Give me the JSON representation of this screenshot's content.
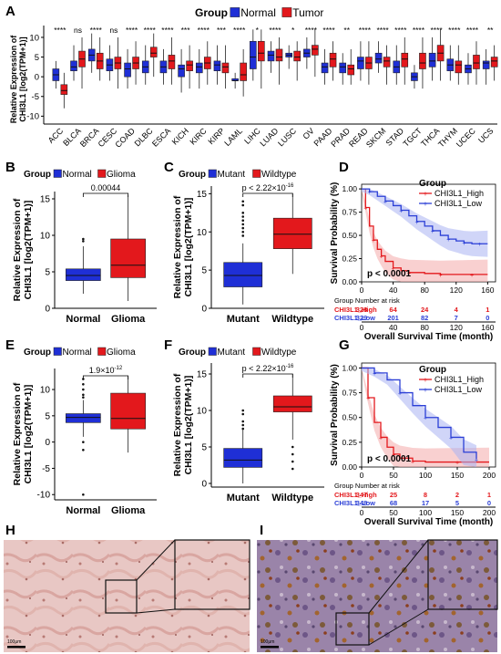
{
  "figure": {
    "panel_letters": [
      "A",
      "B",
      "C",
      "D",
      "E",
      "F",
      "G",
      "H",
      "I"
    ]
  },
  "colors": {
    "normal": "#1f2fd6",
    "tumor": "#e3181c",
    "high": "#e3181c",
    "low": "#2b3fd6",
    "ci_high": "#f4a9a9",
    "ci_low": "#a9b2f2"
  },
  "chart_data": [
    {
      "panel": "A",
      "type": "boxplot",
      "legend_title": "Group",
      "legend": [
        "Normal",
        "Tumor"
      ],
      "legend_position": "top",
      "ylabel": "Relative Expression of CHI3L1 [log2(TPM+1)]",
      "ylim": [
        -12,
        13
      ],
      "yticks": [
        10,
        5,
        0,
        -5,
        -10
      ],
      "categories": [
        "ACC",
        "BLCA",
        "BRCA",
        "CESC",
        "COAD",
        "DLBC",
        "ESCA",
        "KICH",
        "KIRC",
        "KIRP",
        "LAML",
        "LIHC",
        "LUAD",
        "LUSC",
        "OV",
        "PAAD",
        "PRAD",
        "READ",
        "SKCM",
        "STAD",
        "TGCT",
        "THCA",
        "THYM",
        "UCEC",
        "UCS"
      ],
      "significance": [
        "****",
        "ns",
        "****",
        "ns",
        "****",
        "****",
        "****",
        "***",
        "****",
        "***",
        "****",
        "*",
        "****",
        "*",
        "****",
        "****",
        "**",
        "****",
        "****",
        "****",
        "****",
        "****",
        "****",
        "****",
        "**"
      ],
      "series": [
        {
          "name": "Normal",
          "boxes": [
            [
              -3,
              -1,
              0.5,
              2,
              4
            ],
            [
              -1,
              1.5,
              2.5,
              4,
              8
            ],
            [
              1,
              4,
              5.5,
              7,
              11
            ],
            [
              -1,
              1.5,
              3,
              4.5,
              8
            ],
            [
              -3,
              0,
              2,
              3.5,
              7
            ],
            [
              -2,
              1,
              2.5,
              4,
              8
            ],
            [
              -2,
              1,
              2.5,
              4,
              7
            ],
            [
              -4,
              0,
              2,
              3,
              7
            ],
            [
              -3,
              1,
              2.5,
              3.5,
              7
            ],
            [
              -2,
              1.5,
              3,
              4,
              8
            ],
            [
              -3,
              -1,
              -1,
              -0.5,
              1
            ],
            [
              -1,
              2,
              5,
              9,
              12
            ],
            [
              1,
              4,
              5.5,
              6.5,
              9
            ],
            [
              2,
              5,
              5.5,
              6,
              8
            ],
            [
              2,
              5,
              6,
              7,
              10
            ],
            [
              -2,
              1,
              2.5,
              3.5,
              7
            ],
            [
              -2,
              1,
              2.5,
              3.5,
              6
            ],
            [
              -1,
              2,
              4,
              5,
              9
            ],
            [
              1,
              3.5,
              4.5,
              6,
              9
            ],
            [
              -2,
              1,
              2.5,
              4,
              8
            ],
            [
              -3,
              -1,
              0,
              1,
              3
            ],
            [
              -1,
              2.5,
              4,
              6,
              10
            ],
            [
              -1,
              1.5,
              3,
              4.5,
              8
            ],
            [
              -2,
              1,
              2,
              3,
              6
            ],
            [
              -2,
              2,
              3.5,
              4,
              7
            ]
          ]
        },
        {
          "name": "Tumor",
          "boxes": [
            [
              -8,
              -4.5,
              -3.5,
              -2,
              1
            ],
            [
              -3,
              2.5,
              4.5,
              6.5,
              10
            ],
            [
              -1,
              2,
              4,
              6,
              10
            ],
            [
              -3,
              2,
              3.5,
              5,
              10
            ],
            [
              -2,
              2,
              3.5,
              5,
              9
            ],
            [
              0,
              5,
              6,
              7.5,
              11
            ],
            [
              -2,
              2,
              4,
              5.5,
              10
            ],
            [
              -3,
              1.5,
              3,
              4,
              8
            ],
            [
              -2,
              2,
              3.5,
              5,
              9
            ],
            [
              -3,
              1,
              2.5,
              3.5,
              8
            ],
            [
              -5,
              -1,
              0.5,
              3.5,
              7
            ],
            [
              -3,
              4,
              6,
              9,
              12
            ],
            [
              -2,
              4,
              5,
              7,
              10
            ],
            [
              -1,
              4,
              5,
              6.5,
              9
            ],
            [
              0,
              5.5,
              7,
              8,
              12
            ],
            [
              -1,
              2.5,
              4.5,
              6,
              9
            ],
            [
              -2,
              0.5,
              2,
              3,
              7
            ],
            [
              -2,
              2,
              3.5,
              5,
              9
            ],
            [
              -2,
              2.5,
              4,
              5,
              8
            ],
            [
              -2,
              2.5,
              4.5,
              6,
              10
            ],
            [
              -3,
              2,
              3.5,
              6,
              10
            ],
            [
              -1,
              4,
              6,
              8,
              12
            ],
            [
              -2,
              1,
              3,
              4,
              8
            ],
            [
              -2,
              2,
              3.5,
              5.5,
              9
            ],
            [
              -1,
              2.5,
              4,
              5,
              8
            ]
          ]
        }
      ],
      "xlabels_rotated": true
    },
    {
      "panel": "B",
      "type": "boxplot",
      "legend_title": "Group",
      "legend": [
        "Normal",
        "Glioma"
      ],
      "ylabel": "Relative Expression of CHI3L1 [log2(TPM+1)]",
      "ylim": [
        0,
        16
      ],
      "yticks": [
        0,
        5,
        10,
        15
      ],
      "categories": [
        "Normal",
        "Glioma"
      ],
      "pvalue": "0.00044",
      "boxes": [
        [
          2,
          3.8,
          4.5,
          5.4,
          8.5
        ],
        [
          1,
          4.2,
          5.9,
          9.5,
          15.5
        ]
      ],
      "outliers": [
        [
          9.5,
          9.2
        ],
        []
      ]
    },
    {
      "panel": "C",
      "type": "boxplot",
      "legend_title": "Group",
      "legend": [
        "Mutant",
        "Wildtype"
      ],
      "ylabel": "Relative Expression of CHI3L1 [log2(TPM+1)]",
      "ylim": [
        0,
        16
      ],
      "yticks": [
        0,
        5,
        10,
        15
      ],
      "categories": [
        "Mutant",
        "Wildtype"
      ],
      "pvalue": "p < 2.22×10",
      "pvalue_exp": "-16",
      "boxes": [
        [
          0.5,
          2.8,
          4.3,
          6,
          8.5
        ],
        [
          4.5,
          7.8,
          9.7,
          11.8,
          15
        ]
      ],
      "outliers": [
        [
          9.5,
          10,
          10.5,
          11,
          11.5,
          12,
          12.5,
          13.5,
          14
        ],
        []
      ]
    },
    {
      "panel": "D",
      "type": "line",
      "title": "",
      "legend_title": "Group",
      "legend": [
        "CHI3L1_High",
        "CHI3L1_Low"
      ],
      "ylabel": "Survival Probability (%)",
      "xlabel": "Overall Survival Time (month)",
      "xlim": [
        0,
        170
      ],
      "ylim": [
        0,
        1.05
      ],
      "xticks": [
        0,
        40,
        80,
        120,
        160
      ],
      "yticks": [
        "0.00",
        "0.25",
        "0.50",
        "0.75",
        "1.00"
      ],
      "pvalue": "p < 0.0001",
      "series": [
        {
          "name": "CHI3L1_High",
          "x": [
            0,
            5,
            10,
            15,
            20,
            25,
            30,
            40,
            50,
            60,
            80,
            100,
            120,
            140,
            160
          ],
          "y": [
            1,
            0.8,
            0.6,
            0.45,
            0.35,
            0.28,
            0.22,
            0.15,
            0.12,
            0.1,
            0.09,
            0.08,
            0.08,
            0.08,
            0.08
          ]
        },
        {
          "name": "CHI3L1_Low",
          "x": [
            0,
            10,
            20,
            30,
            40,
            50,
            60,
            70,
            80,
            90,
            100,
            110,
            120,
            130,
            140,
            150,
            160
          ],
          "y": [
            1,
            0.97,
            0.92,
            0.87,
            0.82,
            0.77,
            0.71,
            0.65,
            0.6,
            0.55,
            0.5,
            0.46,
            0.44,
            0.42,
            0.41,
            0.41,
            0.41
          ]
        }
      ],
      "risk_table": {
        "title": "Group Number at risk",
        "times": [
          0,
          40,
          80,
          120,
          160
        ],
        "rows": [
          {
            "name": "CHI3L1_High",
            "counts": [
              "328",
              "64",
              "24",
              "4",
              "1"
            ]
          },
          {
            "name": "CHI3L1_Low",
            "counts": [
              "329",
              "201",
              "82",
              "7",
              "0"
            ]
          }
        ]
      }
    },
    {
      "panel": "E",
      "type": "boxplot",
      "legend_title": "Group",
      "legend": [
        "Normal",
        "Glioma"
      ],
      "ylabel": "Relative Expression of CHI3L1 [log2(TPM+1)]",
      "ylim": [
        -11,
        14
      ],
      "yticks": [
        10,
        5,
        0,
        -5,
        -10
      ],
      "categories": [
        "Normal",
        "Glioma"
      ],
      "pvalue": "1.9×10",
      "pvalue_exp": "-12",
      "boxes": [
        [
          1,
          3.7,
          4.7,
          5.4,
          8
        ],
        [
          -2,
          2.5,
          4.5,
          9.3,
          12.5
        ]
      ],
      "outliers": [
        [
          -10,
          -1.5,
          0,
          8.5,
          9,
          10,
          11,
          12
        ],
        []
      ]
    },
    {
      "panel": "F",
      "type": "boxplot",
      "legend_title": "Group",
      "legend": [
        "Mutant",
        "Wildtype"
      ],
      "ylabel": "Relative Expression of CHI3L1 [log2(TPM+1)]",
      "ylim": [
        -0.5,
        16.5
      ],
      "yticks": [
        0,
        5,
        10,
        15
      ],
      "categories": [
        "Mutant",
        "Wildtype"
      ],
      "pvalue": "p < 2.22×10",
      "pvalue_exp": "-16",
      "boxes": [
        [
          0,
          2.2,
          3.2,
          4.8,
          7.5
        ],
        [
          6,
          9.8,
          10.5,
          12,
          15
        ]
      ],
      "outliers": [
        [
          7.5,
          8,
          8.5,
          9.5,
          10
        ],
        [
          2,
          3,
          4,
          5
        ]
      ]
    },
    {
      "panel": "G",
      "type": "line",
      "legend_title": "Group",
      "legend": [
        "CHI3L1_High",
        "CHI3L1_Low"
      ],
      "ylabel": "Survival Probability (%)",
      "xlabel": "Overall Survival Time (month)",
      "xlim": [
        0,
        210
      ],
      "ylim": [
        0,
        1.05
      ],
      "xticks": [
        0,
        50,
        100,
        150,
        200
      ],
      "yticks": [
        "0.00",
        "0.25",
        "0.50",
        "0.75",
        "1.00"
      ],
      "pvalue": "p < 0.0001",
      "series": [
        {
          "name": "CHI3L1_High",
          "x": [
            0,
            10,
            20,
            30,
            40,
            50,
            60,
            80,
            100,
            150,
            200
          ],
          "y": [
            1,
            0.7,
            0.45,
            0.3,
            0.2,
            0.13,
            0.09,
            0.06,
            0.05,
            0.05,
            0.05
          ]
        },
        {
          "name": "CHI3L1_Low",
          "x": [
            0,
            20,
            40,
            60,
            80,
            100,
            120,
            140,
            160,
            180
          ],
          "y": [
            1,
            0.95,
            0.88,
            0.75,
            0.62,
            0.5,
            0.4,
            0.3,
            0.15,
            0.08
          ]
        }
      ],
      "risk_table": {
        "title": "Group Number at risk",
        "times": [
          0,
          50,
          100,
          150,
          200
        ],
        "rows": [
          {
            "name": "CHI3L1_High",
            "counts": [
              "347",
              "25",
              "8",
              "2",
              "1"
            ]
          },
          {
            "name": "CHI3L1_Low",
            "counts": [
              "348",
              "68",
              "17",
              "5",
              "0"
            ]
          }
        ]
      }
    }
  ],
  "micrographs": {
    "H": {
      "scale_label": "100μm"
    },
    "I": {
      "scale_label": "100μm"
    }
  }
}
